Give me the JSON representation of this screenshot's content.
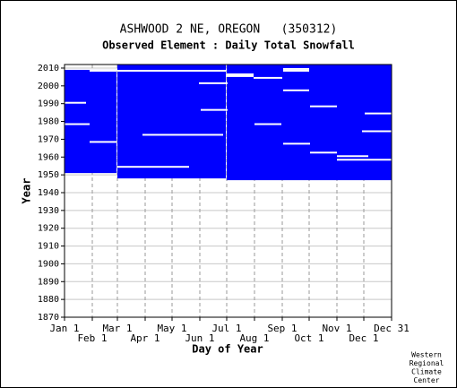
{
  "chart_data": {
    "type": "availability",
    "title": "ASHWOOD 2 NE, OREGON   (350312)",
    "subtitle": "Observed Element : Daily Total Snowfall",
    "x_label": "Day of Year",
    "y_label": "Year",
    "credit": [
      "Western",
      "Regional",
      "Climate",
      "Center"
    ],
    "color": "#0000ff",
    "gap_color": "#ffffff",
    "grid": true,
    "xlim": [
      1,
      366
    ],
    "ylim": [
      1870,
      2012
    ],
    "xticks": [
      {
        "value": 1,
        "label": "Jan 1"
      },
      {
        "value": 32,
        "label": "Feb 1"
      },
      {
        "value": 60,
        "label": "Mar 1"
      },
      {
        "value": 91,
        "label": "Apr 1"
      },
      {
        "value": 121,
        "label": "May 1"
      },
      {
        "value": 152,
        "label": "Jun 1"
      },
      {
        "value": 182,
        "label": "Jul 1"
      },
      {
        "value": 213,
        "label": "Aug 1"
      },
      {
        "value": 244,
        "label": "Sep 1"
      },
      {
        "value": 274,
        "label": "Oct 1"
      },
      {
        "value": 305,
        "label": "Nov 1"
      },
      {
        "value": 335,
        "label": "Dec 1"
      },
      {
        "value": 366,
        "label": "Dec 31"
      }
    ],
    "yticks": [
      1870,
      1880,
      1890,
      1900,
      1910,
      1920,
      1930,
      1940,
      1950,
      1960,
      1970,
      1980,
      1990,
      2000,
      2010
    ],
    "blocks": [
      {
        "days": [
          1,
          59
        ],
        "years": [
          1951,
          2008
        ]
      },
      {
        "days": [
          60,
          181
        ],
        "years": [
          1948,
          2011
        ]
      },
      {
        "days": [
          182,
          366
        ],
        "years": [
          1947,
          2011
        ]
      }
    ],
    "gaps": [
      {
        "days": [
          88,
          178
        ],
        "year": 1972
      },
      {
        "days": [
          151,
          183
        ],
        "year": 2001
      },
      {
        "days": [
          182,
          212
        ],
        "year": 2005
      },
      {
        "days": [
          182,
          212
        ],
        "year": 2006
      },
      {
        "days": [
          212,
          244
        ],
        "year": 2004
      },
      {
        "days": [
          245,
          274
        ],
        "year": 2009
      },
      {
        "days": [
          245,
          274
        ],
        "year": 2008
      },
      {
        "days": [
          245,
          274
        ],
        "year": 1997
      },
      {
        "days": [
          153,
          183
        ],
        "year": 1986
      },
      {
        "days": [
          213,
          243
        ],
        "year": 1978
      },
      {
        "days": [
          245,
          275
        ],
        "year": 1967
      },
      {
        "days": [
          275,
          305
        ],
        "year": 1962
      },
      {
        "days": [
          275,
          305
        ],
        "year": 1988
      },
      {
        "days": [
          60,
          140
        ],
        "year": 1954
      },
      {
        "days": [
          29,
          59
        ],
        "year": 1968
      },
      {
        "days": [
          1,
          29
        ],
        "year": 1978
      },
      {
        "days": [
          336,
          366
        ],
        "year": 1984
      },
      {
        "days": [
          333,
          366
        ],
        "year": 1974
      },
      {
        "days": [
          305,
          366
        ],
        "year": 1958
      },
      {
        "days": [
          305,
          340
        ],
        "year": 1960
      },
      {
        "days": [
          29,
          59
        ],
        "year": 2008
      },
      {
        "days": [
          1,
          25
        ],
        "year": 1990
      },
      {
        "days": [
          60,
          181
        ],
        "year": 2008
      }
    ]
  }
}
